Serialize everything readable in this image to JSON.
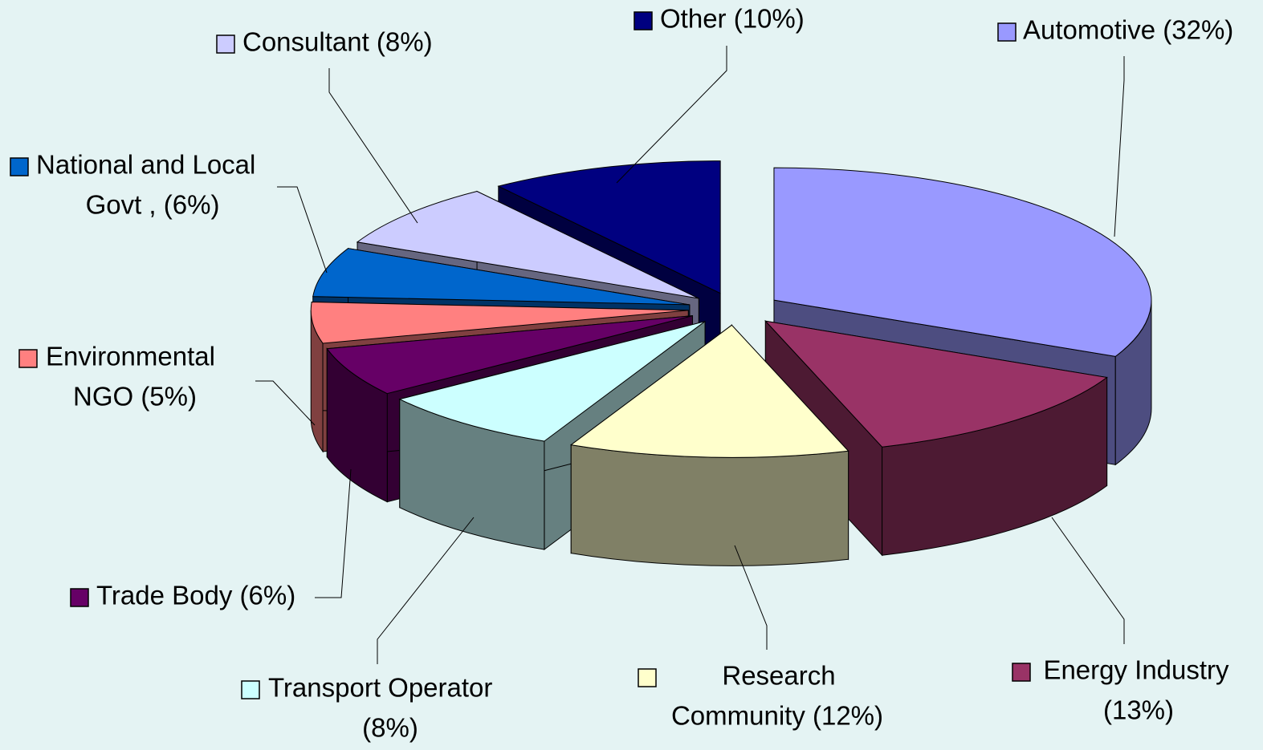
{
  "chart_data": {
    "type": "pie3d",
    "categories": [
      [
        "Automotive (32%)"
      ],
      [
        "Energy Industry",
        "(13%)"
      ],
      [
        "Research",
        "Community (12%)"
      ],
      [
        "Transport Operator",
        "(8%)"
      ],
      [
        "Trade Body (6%)"
      ],
      [
        "Environmental",
        "NGO (5%)"
      ],
      [
        "National and Local",
        "Govt , (6%)"
      ],
      [
        "Consultant (8%)"
      ],
      [
        "Other (10%)"
      ]
    ],
    "values": [
      32,
      13,
      12,
      8,
      6,
      5,
      6,
      8,
      10
    ],
    "colors": [
      "#9999ff",
      "#993366",
      "#ffffcc",
      "#ccffff",
      "#660066",
      "#ff8080",
      "#0066cc",
      "#ccccff",
      "#000080"
    ]
  }
}
